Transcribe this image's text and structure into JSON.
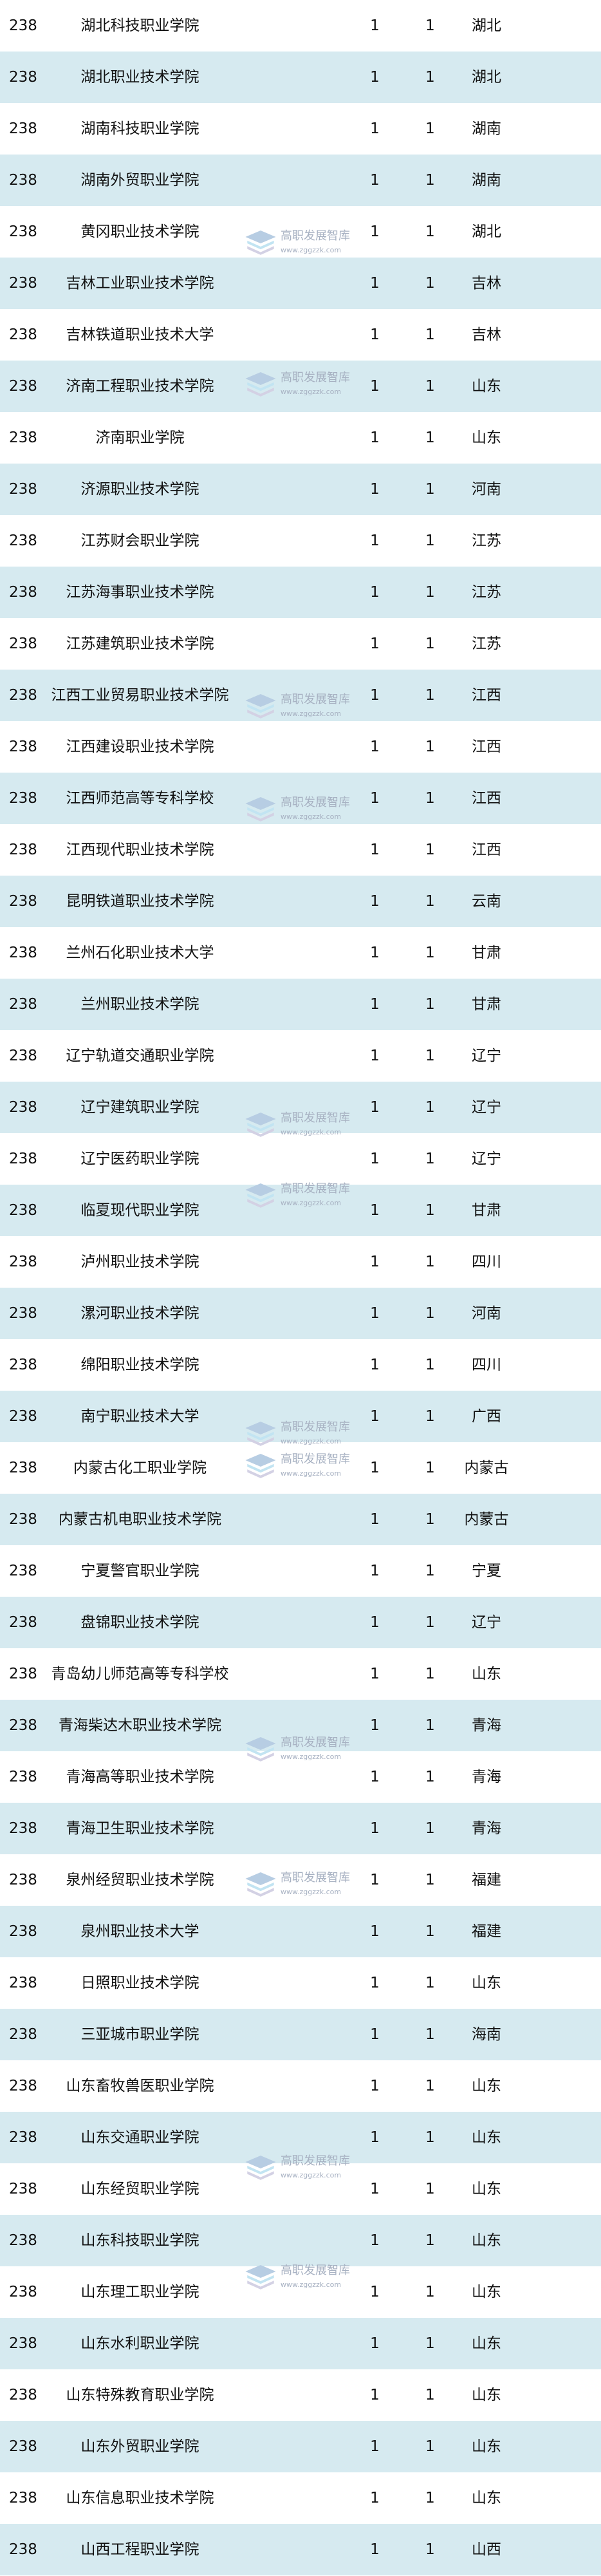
{
  "colors": {
    "row_alt": "#d6eaf0",
    "row": "#ffffff",
    "text": "#111111"
  },
  "watermark": {
    "title": "高职发展智库",
    "url": "www.zggzzk.com",
    "icon": "stacked-books-icon"
  },
  "rows": [
    {
      "rank": "238",
      "name": "湖北科技职业学院",
      "a": "1",
      "b": "1",
      "province": "湖北"
    },
    {
      "rank": "238",
      "name": "湖北职业技术学院",
      "a": "1",
      "b": "1",
      "province": "湖北"
    },
    {
      "rank": "238",
      "name": "湖南科技职业学院",
      "a": "1",
      "b": "1",
      "province": "湖南"
    },
    {
      "rank": "238",
      "name": "湖南外贸职业学院",
      "a": "1",
      "b": "1",
      "province": "湖南"
    },
    {
      "rank": "238",
      "name": "黄冈职业技术学院",
      "a": "1",
      "b": "1",
      "province": "湖北"
    },
    {
      "rank": "238",
      "name": "吉林工业职业技术学院",
      "a": "1",
      "b": "1",
      "province": "吉林"
    },
    {
      "rank": "238",
      "name": "吉林铁道职业技术大学",
      "a": "1",
      "b": "1",
      "province": "吉林"
    },
    {
      "rank": "238",
      "name": "济南工程职业技术学院",
      "a": "1",
      "b": "1",
      "province": "山东"
    },
    {
      "rank": "238",
      "name": "济南职业学院",
      "a": "1",
      "b": "1",
      "province": "山东"
    },
    {
      "rank": "238",
      "name": "济源职业技术学院",
      "a": "1",
      "b": "1",
      "province": "河南"
    },
    {
      "rank": "238",
      "name": "江苏财会职业学院",
      "a": "1",
      "b": "1",
      "province": "江苏"
    },
    {
      "rank": "238",
      "name": "江苏海事职业技术学院",
      "a": "1",
      "b": "1",
      "province": "江苏"
    },
    {
      "rank": "238",
      "name": "江苏建筑职业技术学院",
      "a": "1",
      "b": "1",
      "province": "江苏"
    },
    {
      "rank": "238",
      "name": "江西工业贸易职业技术学院",
      "a": "1",
      "b": "1",
      "province": "江西"
    },
    {
      "rank": "238",
      "name": "江西建设职业技术学院",
      "a": "1",
      "b": "1",
      "province": "江西"
    },
    {
      "rank": "238",
      "name": "江西师范高等专科学校",
      "a": "1",
      "b": "1",
      "province": "江西"
    },
    {
      "rank": "238",
      "name": "江西现代职业技术学院",
      "a": "1",
      "b": "1",
      "province": "江西"
    },
    {
      "rank": "238",
      "name": "昆明铁道职业技术学院",
      "a": "1",
      "b": "1",
      "province": "云南"
    },
    {
      "rank": "238",
      "name": "兰州石化职业技术大学",
      "a": "1",
      "b": "1",
      "province": "甘肃"
    },
    {
      "rank": "238",
      "name": "兰州职业技术学院",
      "a": "1",
      "b": "1",
      "province": "甘肃"
    },
    {
      "rank": "238",
      "name": "辽宁轨道交通职业学院",
      "a": "1",
      "b": "1",
      "province": "辽宁"
    },
    {
      "rank": "238",
      "name": "辽宁建筑职业学院",
      "a": "1",
      "b": "1",
      "province": "辽宁"
    },
    {
      "rank": "238",
      "name": "辽宁医药职业学院",
      "a": "1",
      "b": "1",
      "province": "辽宁"
    },
    {
      "rank": "238",
      "name": "临夏现代职业学院",
      "a": "1",
      "b": "1",
      "province": "甘肃"
    },
    {
      "rank": "238",
      "name": "泸州职业技术学院",
      "a": "1",
      "b": "1",
      "province": "四川"
    },
    {
      "rank": "238",
      "name": "漯河职业技术学院",
      "a": "1",
      "b": "1",
      "province": "河南"
    },
    {
      "rank": "238",
      "name": "绵阳职业技术学院",
      "a": "1",
      "b": "1",
      "province": "四川"
    },
    {
      "rank": "238",
      "name": "南宁职业技术大学",
      "a": "1",
      "b": "1",
      "province": "广西"
    },
    {
      "rank": "238",
      "name": "内蒙古化工职业学院",
      "a": "1",
      "b": "1",
      "province": "内蒙古"
    },
    {
      "rank": "238",
      "name": "内蒙古机电职业技术学院",
      "a": "1",
      "b": "1",
      "province": "内蒙古"
    },
    {
      "rank": "238",
      "name": "宁夏警官职业学院",
      "a": "1",
      "b": "1",
      "province": "宁夏"
    },
    {
      "rank": "238",
      "name": "盘锦职业技术学院",
      "a": "1",
      "b": "1",
      "province": "辽宁"
    },
    {
      "rank": "238",
      "name": "青岛幼儿师范高等专科学校",
      "a": "1",
      "b": "1",
      "province": "山东"
    },
    {
      "rank": "238",
      "name": "青海柴达木职业技术学院",
      "a": "1",
      "b": "1",
      "province": "青海"
    },
    {
      "rank": "238",
      "name": "青海高等职业技术学院",
      "a": "1",
      "b": "1",
      "province": "青海"
    },
    {
      "rank": "238",
      "name": "青海卫生职业技术学院",
      "a": "1",
      "b": "1",
      "province": "青海"
    },
    {
      "rank": "238",
      "name": "泉州经贸职业技术学院",
      "a": "1",
      "b": "1",
      "province": "福建"
    },
    {
      "rank": "238",
      "name": "泉州职业技术大学",
      "a": "1",
      "b": "1",
      "province": "福建"
    },
    {
      "rank": "238",
      "name": "日照职业技术学院",
      "a": "1",
      "b": "1",
      "province": "山东"
    },
    {
      "rank": "238",
      "name": "三亚城市职业学院",
      "a": "1",
      "b": "1",
      "province": "海南"
    },
    {
      "rank": "238",
      "name": "山东畜牧兽医职业学院",
      "a": "1",
      "b": "1",
      "province": "山东"
    },
    {
      "rank": "238",
      "name": "山东交通职业学院",
      "a": "1",
      "b": "1",
      "province": "山东"
    },
    {
      "rank": "238",
      "name": "山东经贸职业学院",
      "a": "1",
      "b": "1",
      "province": "山东"
    },
    {
      "rank": "238",
      "name": "山东科技职业学院",
      "a": "1",
      "b": "1",
      "province": "山东"
    },
    {
      "rank": "238",
      "name": "山东理工职业学院",
      "a": "1",
      "b": "1",
      "province": "山东"
    },
    {
      "rank": "238",
      "name": "山东水利职业学院",
      "a": "1",
      "b": "1",
      "province": "山东"
    },
    {
      "rank": "238",
      "name": "山东特殊教育职业学院",
      "a": "1",
      "b": "1",
      "province": "山东"
    },
    {
      "rank": "238",
      "name": "山东外贸职业学院",
      "a": "1",
      "b": "1",
      "province": "山东"
    },
    {
      "rank": "238",
      "name": "山东信息职业技术学院",
      "a": "1",
      "b": "1",
      "province": "山东"
    },
    {
      "rank": "238",
      "name": "山西工程职业学院",
      "a": "1",
      "b": "1",
      "province": "山西"
    }
  ]
}
